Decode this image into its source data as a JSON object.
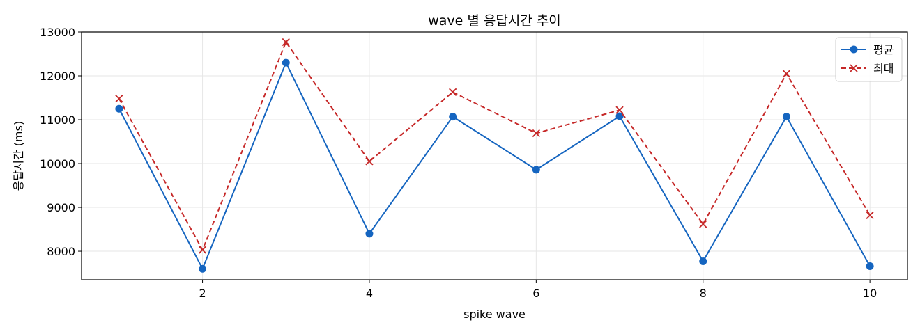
{
  "chart_data": {
    "type": "line",
    "title": "wave 별 응답시간 추이",
    "xlabel": "spike wave",
    "ylabel": "응답시간 (ms)",
    "x": [
      1,
      2,
      3,
      4,
      5,
      6,
      7,
      8,
      9,
      10
    ],
    "xlim": [
      0.55,
      10.45
    ],
    "ylim": [
      7350,
      13000
    ],
    "xticks": [
      2,
      4,
      6,
      8,
      10
    ],
    "yticks": [
      8000,
      9000,
      10000,
      11000,
      12000,
      13000
    ],
    "grid": true,
    "legend_position": "top-right",
    "series": [
      {
        "name": "평균",
        "color": "#1565c0",
        "line_style": "solid",
        "marker": "circle",
        "values": [
          11250,
          7600,
          12300,
          8400,
          11070,
          9860,
          11080,
          7770,
          11070,
          7660
        ]
      },
      {
        "name": "최대",
        "color": "#c62828",
        "line_style": "dashed",
        "marker": "x",
        "values": [
          11480,
          8030,
          12770,
          10050,
          11630,
          10690,
          11220,
          8620,
          12050,
          8820
        ]
      }
    ]
  }
}
